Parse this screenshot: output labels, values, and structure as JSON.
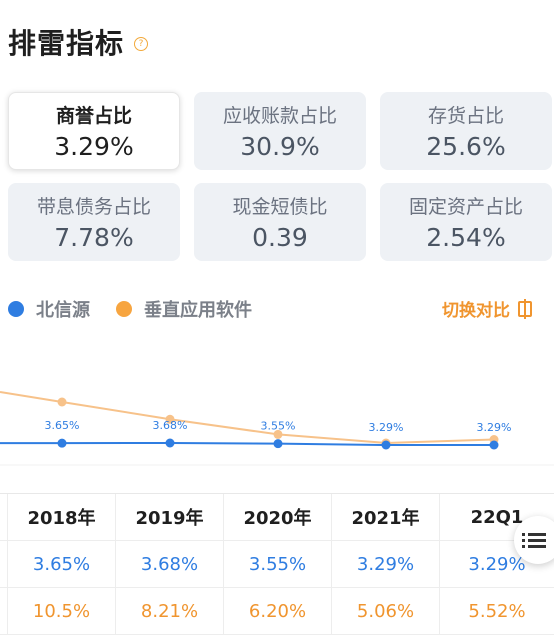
{
  "header": {
    "title": "排雷指标",
    "help_icon": "question-circle-icon"
  },
  "cards": [
    {
      "label": "商誉占比",
      "value": "3.29%",
      "active": true
    },
    {
      "label": "应收账款占比",
      "value": "30.9%"
    },
    {
      "label": "存货占比",
      "value": "25.6%"
    },
    {
      "label": "带息债务占比",
      "value": "7.78%"
    },
    {
      "label": "现金短债比",
      "value": "0.39"
    },
    {
      "label": "固定资产占比",
      "value": "2.54%"
    }
  ],
  "legend": {
    "series1": {
      "name": "北信源",
      "color": "#2f7de1"
    },
    "series2": {
      "name": "垂直应用软件",
      "color": "#f7a540"
    }
  },
  "switch_label": "切换对比",
  "chart_data": {
    "type": "line",
    "categories": [
      "2018年",
      "2019年",
      "2020年",
      "2021年",
      "22Q1"
    ],
    "series": [
      {
        "name": "北信源",
        "values": [
          3.65,
          3.68,
          3.55,
          3.29,
          3.29
        ],
        "labels": [
          "3.65%",
          "3.68%",
          "3.55%",
          "3.29%",
          "3.29%"
        ],
        "color": "#2f7de1"
      },
      {
        "name": "垂直应用软件",
        "values": [
          10.5,
          8.21,
          6.2,
          5.06,
          5.52
        ],
        "color": "#f7c28a"
      }
    ]
  },
  "table": {
    "headers": [
      "2018年",
      "2019年",
      "2020年",
      "2021年",
      "22Q1"
    ],
    "row1": [
      "3.65%",
      "3.68%",
      "3.55%",
      "3.29%",
      "3.29%"
    ],
    "row2": [
      "10.5%",
      "8.21%",
      "6.20%",
      "5.06%",
      "5.52%"
    ]
  }
}
